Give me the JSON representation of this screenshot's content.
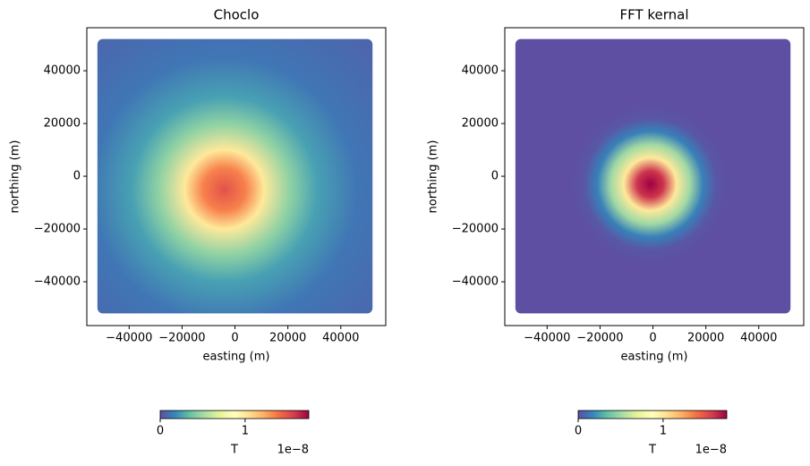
{
  "chart_data": [
    {
      "type": "image",
      "title": "Choclo",
      "xlabel": "easting (m)",
      "ylabel": "northing (m)",
      "xlim": [
        -56000,
        57000
      ],
      "ylim": [
        -56600,
        56300
      ],
      "xticks": [
        {
          "value": -40000,
          "label": "−40000"
        },
        {
          "value": -20000,
          "label": "−20000"
        },
        0,
        20000,
        40000
      ],
      "yticks": [
        {
          "value": -40000,
          "label": "−40000"
        },
        {
          "value": -20000,
          "label": "−20000"
        },
        0,
        20000,
        40000
      ],
      "extent": [
        -52000,
        52000
      ],
      "field": {
        "center": [
          -4000,
          -5000
        ],
        "radii": [
          0,
          8000,
          15000,
          25000,
          35000,
          50000,
          75000
        ],
        "values": [
          1.5,
          1.35,
          1.0,
          0.45,
          0.25,
          0.12,
          0.07
        ]
      },
      "colormap": [
        "#5e4fa2",
        "#3288bd",
        "#66c2a5",
        "#abdda4",
        "#e6f598",
        "#ffffbf",
        "#fee08b",
        "#fdae61",
        "#f46d43",
        "#d53e4f",
        "#9e0142"
      ],
      "colorbar": {
        "clim": [
          0,
          1.75
        ],
        "ticks": [
          0,
          1
        ],
        "label": "T",
        "offset_label": "1e−8"
      }
    },
    {
      "type": "image",
      "title": "FFT kernal",
      "xlabel": "easting (m)",
      "ylabel": "northing (m)",
      "xlim": [
        -56000,
        57000
      ],
      "ylim": [
        -56600,
        56300
      ],
      "xticks": [
        {
          "value": -40000,
          "label": "−40000"
        },
        {
          "value": -20000,
          "label": "−20000"
        },
        0,
        20000,
        40000
      ],
      "yticks": [
        {
          "value": -40000,
          "label": "−40000"
        },
        {
          "value": -20000,
          "label": "−20000"
        },
        0,
        20000,
        40000
      ],
      "extent": [
        -52000,
        52000
      ],
      "field": {
        "center": [
          -1000,
          -3000
        ],
        "radii": [
          0,
          5000,
          10000,
          15000,
          20000,
          25000,
          30000
        ],
        "values": [
          1.75,
          1.6,
          1.0,
          0.5,
          0.15,
          0.02,
          0
        ]
      },
      "colormap": [
        "#5e4fa2",
        "#3288bd",
        "#66c2a5",
        "#abdda4",
        "#e6f598",
        "#ffffbf",
        "#fee08b",
        "#fdae61",
        "#f46d43",
        "#d53e4f",
        "#9e0142"
      ],
      "colorbar": {
        "clim": [
          0,
          1.75
        ],
        "ticks": [
          0,
          1
        ],
        "label": "T",
        "offset_label": "1e−8"
      }
    }
  ]
}
